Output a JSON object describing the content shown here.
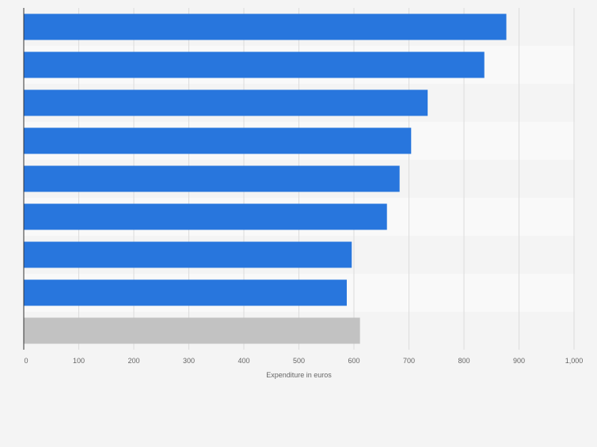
{
  "chart_data": {
    "type": "bar",
    "orientation": "horizontal",
    "categories": [
      "",
      "",
      "",
      "",
      "",
      "",
      "",
      "",
      ""
    ],
    "values": [
      877,
      837,
      734,
      704,
      683,
      660,
      596,
      587,
      611
    ],
    "bar_colors": [
      "#2876dd",
      "#2876dd",
      "#2876dd",
      "#2876dd",
      "#2876dd",
      "#2876dd",
      "#2876dd",
      "#2876dd",
      "#c2c2c2"
    ],
    "xlabel": "Expenditure in euros",
    "ylabel": "",
    "xlim": [
      0,
      1000
    ],
    "x_ticks": [
      0,
      100,
      200,
      300,
      400,
      500,
      600,
      700,
      800,
      900,
      1000
    ],
    "x_tick_labels": [
      "0",
      "100",
      "200",
      "300",
      "400",
      "500",
      "600",
      "700",
      "800",
      "900",
      "1,000"
    ],
    "grid": true,
    "colors": {
      "primary": "#2876dd",
      "highlight": "#c2c2c2",
      "background": "#f4f4f4",
      "band_alt": "#f9f9f9",
      "gridline": "#dcdcdc",
      "axis": "#333333",
      "tick_text": "#666666"
    }
  }
}
